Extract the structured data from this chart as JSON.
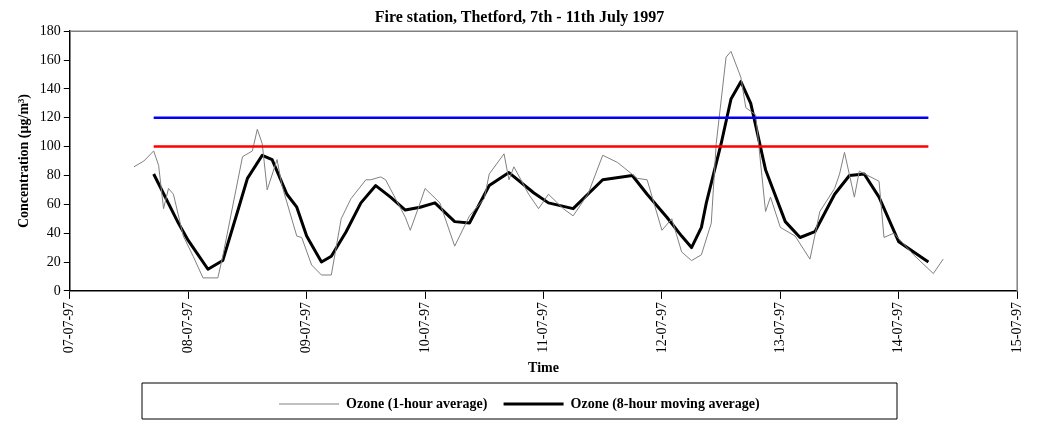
{
  "chart_data": {
    "type": "line",
    "title": "Fire station, Thetford, 7th - 11th July 1997",
    "xlabel": "Time",
    "ylabel": "Concentration (µg/m³)",
    "xlim": [
      "1997-07-07",
      "1997-07-15"
    ],
    "xticks": [
      {
        "value": "1997-07-07",
        "label": "07-07-97"
      },
      {
        "value": "1997-07-08",
        "label": "08-07-97"
      },
      {
        "value": "1997-07-09",
        "label": "09-07-97"
      },
      {
        "value": "1997-07-10",
        "label": "10-07-97"
      },
      {
        "value": "1997-07-11",
        "label": "11-07-97"
      },
      {
        "value": "1997-07-12",
        "label": "12-07-97"
      },
      {
        "value": "1997-07-13",
        "label": "13-07-97"
      },
      {
        "value": "1997-07-14",
        "label": "14-07-97"
      },
      {
        "value": "1997-07-15",
        "label": "15-07-97"
      }
    ],
    "ylim": [
      0,
      180
    ],
    "yticks": [
      0,
      20,
      40,
      60,
      80,
      100,
      120,
      140,
      160,
      180
    ],
    "grid": false,
    "legend": "bottom",
    "marker": "none",
    "ref_lines": [
      {
        "axis": "y",
        "value": 120,
        "color": "#0000ff"
      },
      {
        "axis": "y",
        "value": 100,
        "color": "#ff0000"
      }
    ],
    "series": [
      {
        "name": "Ozone (1-hour average)",
        "color": "#808080",
        "x": [
          "1997-07-07T13:00",
          "1997-07-07T15:00",
          "1997-07-07T17:00",
          "1997-07-07T18:00",
          "1997-07-07T19:00",
          "1997-07-07T20:00",
          "1997-07-07T21:00",
          "1997-07-07T23:00",
          "1997-07-08T01:00",
          "1997-07-08T03:00",
          "1997-07-08T06:00",
          "1997-07-08T07:00",
          "1997-07-08T11:00",
          "1997-07-08T13:00",
          "1997-07-08T14:00",
          "1997-07-08T15:00",
          "1997-07-08T16:00",
          "1997-07-08T18:00",
          "1997-07-08T19:00",
          "1997-07-08T22:00",
          "1997-07-08T23:00",
          "1997-07-09T01:00",
          "1997-07-09T03:00",
          "1997-07-09T05:00",
          "1997-07-09T07:00",
          "1997-07-09T09:00",
          "1997-07-09T12:00",
          "1997-07-09T13:00",
          "1997-07-09T15:00",
          "1997-07-09T16:00",
          "1997-07-09T18:00",
          "1997-07-09T20:00",
          "1997-07-09T21:00",
          "1997-07-09T23:00",
          "1997-07-10T00:00",
          "1997-07-10T03:00",
          "1997-07-10T06:00",
          "1997-07-10T09:00",
          "1997-07-10T12:00",
          "1997-07-10T13:00",
          "1997-07-10T16:00",
          "1997-07-10T17:00",
          "1997-07-10T18:00",
          "1997-07-10T21:00",
          "1997-07-10T23:00",
          "1997-07-11T01:00",
          "1997-07-11T04:00",
          "1997-07-11T06:00",
          "1997-07-11T09:00",
          "1997-07-11T12:00",
          "1997-07-11T15:00",
          "1997-07-11T19:00",
          "1997-07-11T21:00",
          "1997-07-12T00:00",
          "1997-07-12T02:00",
          "1997-07-12T04:00",
          "1997-07-12T06:00",
          "1997-07-12T08:00",
          "1997-07-12T10:00",
          "1997-07-12T11:00",
          "1997-07-12T13:00",
          "1997-07-12T14:00",
          "1997-07-12T16:00",
          "1997-07-12T17:00",
          "1997-07-12T19:00",
          "1997-07-12T21:00",
          "1997-07-12T22:00",
          "1997-07-13T00:00",
          "1997-07-13T03:00",
          "1997-07-13T06:00",
          "1997-07-13T08:00",
          "1997-07-13T11:00",
          "1997-07-13T12:00",
          "1997-07-13T13:00",
          "1997-07-13T15:00",
          "1997-07-13T16:00",
          "1997-07-13T20:00",
          "1997-07-13T21:00",
          "1997-07-13T23:00",
          "1997-07-14T03:00",
          "1997-07-14T07:00",
          "1997-07-14T09:00"
        ],
        "values": [
          86,
          90,
          97,
          87,
          57,
          71,
          67,
          38,
          24,
          9,
          9,
          24,
          93,
          97,
          112,
          102,
          70,
          91,
          73,
          38,
          37,
          18,
          11,
          11,
          50,
          64,
          77,
          77,
          79,
          77,
          64,
          51,
          42,
          61,
          71,
          61,
          31,
          52,
          64,
          81,
          95,
          77,
          86,
          67,
          57,
          67,
          57,
          52,
          67,
          94,
          89,
          78,
          77,
          42,
          50,
          27,
          21,
          25,
          47,
          102,
          162,
          166,
          148,
          127,
          122,
          55,
          65,
          44,
          38,
          22,
          55,
          71,
          81,
          96,
          65,
          83,
          76,
          37,
          40,
          25,
          12,
          22
        ]
      },
      {
        "name": "Ozone (8-hour moving average)",
        "color": "#000000",
        "x": [
          "1997-07-07T17:00",
          "1997-07-07T22:00",
          "1997-07-08T00:00",
          "1997-07-08T04:00",
          "1997-07-08T07:00",
          "1997-07-08T10:00",
          "1997-07-08T12:00",
          "1997-07-08T15:00",
          "1997-07-08T17:00",
          "1997-07-08T20:00",
          "1997-07-08T22:00",
          "1997-07-09T00:00",
          "1997-07-09T03:00",
          "1997-07-09T05:00",
          "1997-07-09T08:00",
          "1997-07-09T11:00",
          "1997-07-09T14:00",
          "1997-07-09T17:00",
          "1997-07-09T20:00",
          "1997-07-09T23:00",
          "1997-07-10T02:00",
          "1997-07-10T06:00",
          "1997-07-10T09:00",
          "1997-07-10T13:00",
          "1997-07-10T17:00",
          "1997-07-10T22:00",
          "1997-07-11T01:00",
          "1997-07-11T06:00",
          "1997-07-11T12:00",
          "1997-07-11T18:00",
          "1997-07-11T21:00",
          "1997-07-12T01:00",
          "1997-07-12T04:00",
          "1997-07-12T06:00",
          "1997-07-12T08:00",
          "1997-07-12T09:00",
          "1997-07-12T12:00",
          "1997-07-12T14:00",
          "1997-07-12T16:00",
          "1997-07-12T18:00",
          "1997-07-12T21:00",
          "1997-07-13T01:00",
          "1997-07-13T04:00",
          "1997-07-13T07:00",
          "1997-07-13T11:00",
          "1997-07-13T14:00",
          "1997-07-13T17:00",
          "1997-07-13T20:00",
          "1997-07-14T00:00",
          "1997-07-14T06:00"
        ],
        "values": [
          81,
          47,
          35,
          15,
          21,
          55,
          78,
          94,
          91,
          67,
          58,
          38,
          20,
          24,
          41,
          61,
          73,
          65,
          56,
          58,
          61,
          48,
          47,
          73,
          82,
          68,
          61,
          57,
          77,
          80,
          67,
          51,
          38,
          30,
          44,
          61,
          102,
          133,
          145,
          130,
          84,
          48,
          37,
          41,
          67,
          80,
          81,
          65,
          34,
          20
        ]
      }
    ]
  }
}
